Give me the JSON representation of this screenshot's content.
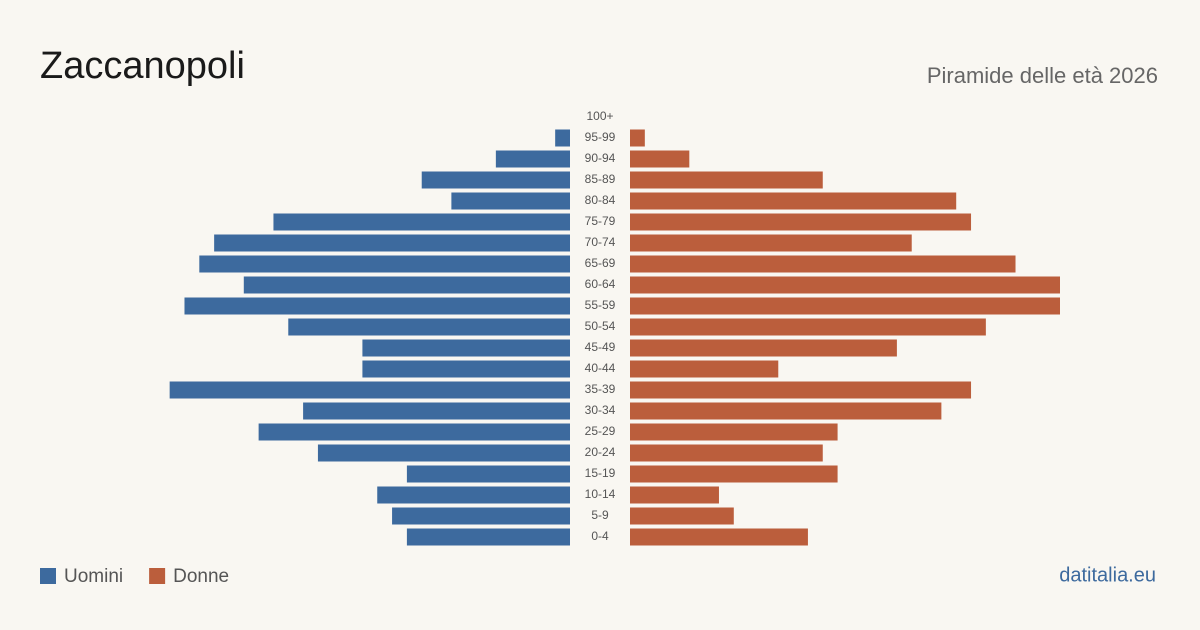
{
  "chart_data": {
    "type": "pyramid",
    "title": "Zaccanopoli",
    "subtitle": "Piramide delle età 2026",
    "source": "datitalia.eu",
    "categories": [
      "100+",
      "95-99",
      "90-94",
      "85-89",
      "80-84",
      "75-79",
      "70-74",
      "65-69",
      "60-64",
      "55-59",
      "50-54",
      "45-49",
      "40-44",
      "35-39",
      "30-34",
      "25-29",
      "20-24",
      "15-19",
      "10-14",
      "5-9",
      "0-4"
    ],
    "series": [
      {
        "name": "Uomini",
        "color": "#3d6a9e",
        "values": [
          0,
          1,
          5,
          10,
          8,
          20,
          24,
          25,
          22,
          26,
          19,
          14,
          14,
          27,
          18,
          21,
          17,
          11,
          13,
          12,
          11
        ]
      },
      {
        "name": "Donne",
        "color": "#bb5e3c",
        "values": [
          0,
          1,
          4,
          13,
          22,
          23,
          19,
          26,
          29,
          29,
          24,
          18,
          10,
          23,
          21,
          14,
          13,
          14,
          6,
          7,
          12
        ]
      }
    ]
  }
}
